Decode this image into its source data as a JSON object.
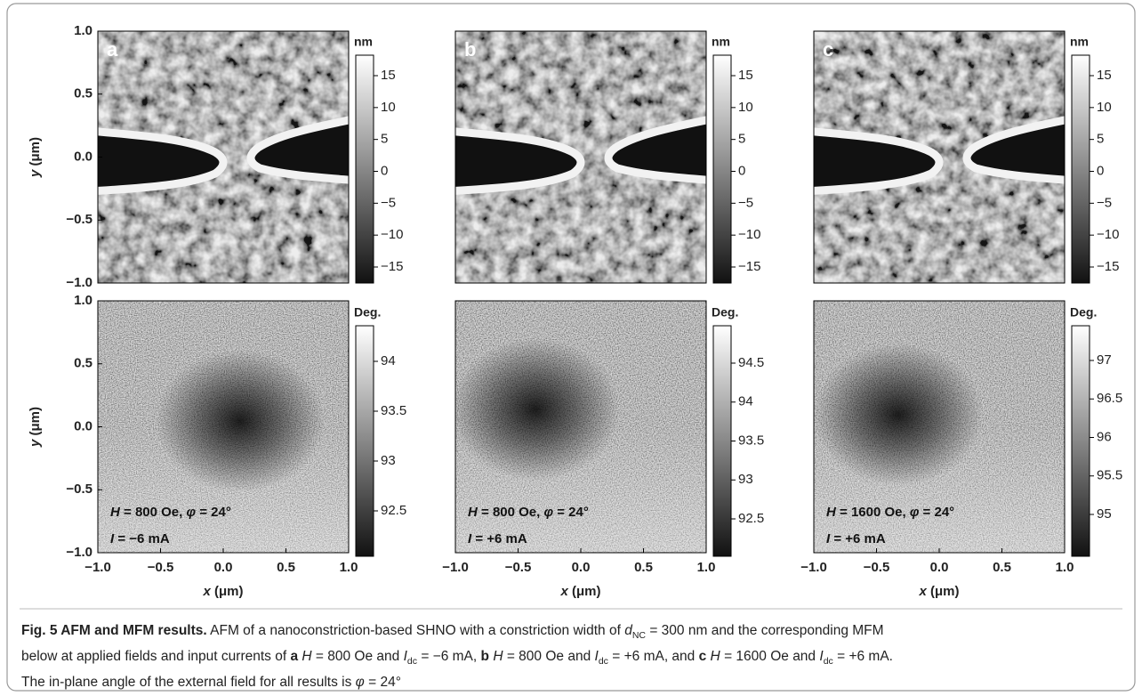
{
  "figure": {
    "panels": [
      {
        "label": "a",
        "afm_unit": "nm",
        "afm_ticks": [
          "15",
          "10",
          "5",
          "0",
          "−5",
          "−10",
          "−15"
        ],
        "mfm_unit": "Deg.",
        "mfm_ticks": [
          "94",
          "93.5",
          "93",
          "92.5"
        ],
        "field": [
          "H",
          "= 800 Oe,",
          "φ",
          "= 24°"
        ],
        "current": [
          "I",
          "= −6 mA"
        ]
      },
      {
        "label": "b",
        "afm_unit": "nm",
        "afm_ticks": [
          "15",
          "10",
          "5",
          "0",
          "−5",
          "−10",
          "−15"
        ],
        "mfm_unit": "Deg.",
        "mfm_ticks": [
          "94.5",
          "94",
          "93.5",
          "93",
          "92.5"
        ],
        "field": [
          "H",
          "= 800 Oe,",
          "φ",
          "= 24°"
        ],
        "current": [
          "I",
          "= +6 mA"
        ]
      },
      {
        "label": "c",
        "afm_unit": "nm",
        "afm_ticks": [
          "15",
          "10",
          "5",
          "0",
          "−5",
          "−10",
          "−15"
        ],
        "mfm_unit": "Deg.",
        "mfm_ticks": [
          "97",
          "96.5",
          "96",
          "95.5",
          "95"
        ],
        "field": [
          "H",
          "= 1600 Oe,",
          "φ",
          "= 24°"
        ],
        "current": [
          "I",
          "= +6 mA"
        ]
      }
    ],
    "y_axis": {
      "label": [
        "y",
        "(μm)"
      ],
      "ticks": [
        "1.0",
        "0.5",
        "0.0",
        "−0.5",
        "−1.0"
      ]
    },
    "x_axis": {
      "label": [
        "x",
        "(μm)"
      ],
      "ticks": [
        "−1.0",
        "−0.5",
        "0.0",
        "0.5",
        "1.0"
      ]
    },
    "caption": {
      "parts": [
        "Fig. 5 AFM and MFM results.",
        "AFM of a nanoconstriction-based SHNO with a constriction width of",
        "d",
        "NC",
        "= 300 nm and the corresponding MFM",
        "below at applied fields and input currents of",
        "a",
        "H",
        "= 800 Oe and",
        "I",
        "dc",
        "= −6 mA,",
        "b",
        "H",
        "= 800 Oe and",
        "I",
        "dc",
        "= +6 mA, and",
        "c",
        "H",
        "= 1600 Oe and",
        "I",
        "dc",
        "= +6 mA.",
        "The in-plane angle of the external field for all results is",
        "φ",
        "= 24°"
      ]
    }
  }
}
